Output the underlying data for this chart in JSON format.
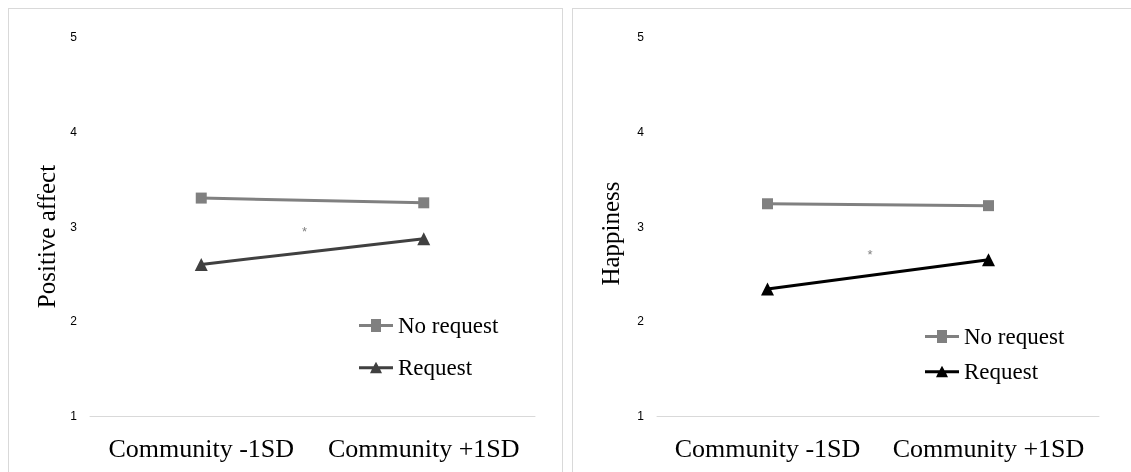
{
  "chart_data": [
    {
      "type": "line",
      "categories": [
        "Community -1SD",
        "Community +1SD"
      ],
      "ylabel": "Positive affect",
      "ylim": [
        1,
        5
      ],
      "yticks": [
        1,
        2,
        3,
        4,
        5
      ],
      "legend": "bottom right",
      "annotations": [
        "*"
      ],
      "series": [
        {
          "name": "No request",
          "color": "#808080",
          "marker": "square",
          "values": [
            3.3,
            3.25
          ]
        },
        {
          "name": "Request",
          "color": "#404040",
          "marker": "triangle",
          "values": [
            2.6,
            2.87
          ]
        }
      ]
    },
    {
      "type": "line",
      "categories": [
        "Community -1SD",
        "Community +1SD"
      ],
      "ylabel": "Happiness",
      "ylim": [
        1,
        5
      ],
      "yticks": [
        1,
        2,
        3,
        4,
        5
      ],
      "legend": "bottom right",
      "annotations": [
        "*"
      ],
      "series": [
        {
          "name": "No request",
          "color": "#808080",
          "marker": "square",
          "values": [
            3.24,
            3.22
          ]
        },
        {
          "name": "Request",
          "color": "#000000",
          "marker": "triangle",
          "values": [
            2.34,
            2.65
          ]
        }
      ]
    }
  ]
}
